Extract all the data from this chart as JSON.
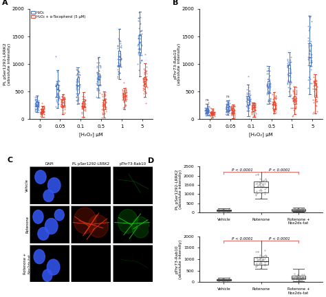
{
  "panel_A": {
    "ylabel": "PL pSer1292-LRRK2\n(absolute intensity)",
    "xlabel": "[H₂O₂] μM",
    "ylim": [
      0,
      2000
    ],
    "yticks": [
      0,
      500,
      1000,
      1500,
      2000
    ],
    "xtick_labels": [
      "0",
      "0.05",
      "0.1",
      "0.5",
      "1",
      "5"
    ],
    "blue_label": "H₂O₂",
    "red_label": "H₂O₂ + α-Tocopherol (5 μM)",
    "blue_color": "#4472C4",
    "red_color": "#E8442A",
    "blue_means": [
      280,
      520,
      610,
      700,
      1080,
      1350
    ],
    "blue_stds": [
      80,
      160,
      160,
      175,
      240,
      280
    ],
    "red_means": [
      145,
      280,
      270,
      280,
      400,
      660
    ],
    "red_stds": [
      55,
      90,
      90,
      105,
      110,
      175
    ],
    "n_points": 55
  },
  "panel_B": {
    "ylabel": "pThr73-Rab10\n(absolute intensity)",
    "xlabel": "[H₂O₂] μM",
    "ylim": [
      0,
      2000
    ],
    "yticks": [
      0,
      500,
      1000,
      1500,
      2000
    ],
    "xtick_labels": [
      "0",
      "0.05",
      "0.1",
      "0.5",
      "1",
      "5"
    ],
    "blue_means": [
      155,
      190,
      360,
      600,
      840,
      1180
    ],
    "blue_stds": [
      55,
      70,
      130,
      170,
      210,
      330
    ],
    "red_means": [
      110,
      150,
      200,
      280,
      360,
      520
    ],
    "red_stds": [
      35,
      50,
      70,
      90,
      110,
      165
    ]
  },
  "panel_D": {
    "ylabel": "PL pSer1292-LRRK2\n(absolute intensity)",
    "ylim": [
      0,
      2500
    ],
    "yticks": [
      0,
      500,
      1000,
      1500,
      2000,
      2500
    ],
    "categories": [
      "Vehicle",
      "Rotenone",
      "Rotenone +\nNox2ds-tat"
    ],
    "vehicle_median": 95,
    "vehicle_q1": 55,
    "vehicle_q3": 145,
    "vehicle_whisker_low": 15,
    "vehicle_whisker_high": 210,
    "rotenone_median": 1400,
    "rotenone_q1": 1080,
    "rotenone_q3": 1680,
    "rotenone_whisker_low": 750,
    "rotenone_whisker_high": 2200,
    "rotnox_median": 125,
    "rotnox_q1": 75,
    "rotnox_q3": 175,
    "rotnox_whisker_low": 25,
    "rotnox_whisker_high": 270
  },
  "panel_E": {
    "ylabel": "pThr73-Rab10\n(absolute intensity)",
    "ylim": [
      0,
      2000
    ],
    "yticks": [
      0,
      500,
      1000,
      1500,
      2000
    ],
    "categories": [
      "Vehicle",
      "Rotenone",
      "Rotenone +\nNox2ds-tat"
    ],
    "vehicle_median": 95,
    "vehicle_q1": 60,
    "vehicle_q3": 135,
    "vehicle_whisker_low": 15,
    "vehicle_whisker_high": 195,
    "rotenone_median": 920,
    "rotenone_q1": 760,
    "rotenone_q3": 1100,
    "rotenone_whisker_low": 580,
    "rotenone_whisker_high": 1800,
    "rotnox_median": 195,
    "rotnox_q1": 125,
    "rotnox_q3": 275,
    "rotnox_whisker_low": 45,
    "rotnox_whisker_high": 570
  },
  "pvalue_text": "P < 0.0001",
  "sig_color": "#E8706A",
  "blue_color": "#4472C4",
  "red_color": "#E8442A"
}
